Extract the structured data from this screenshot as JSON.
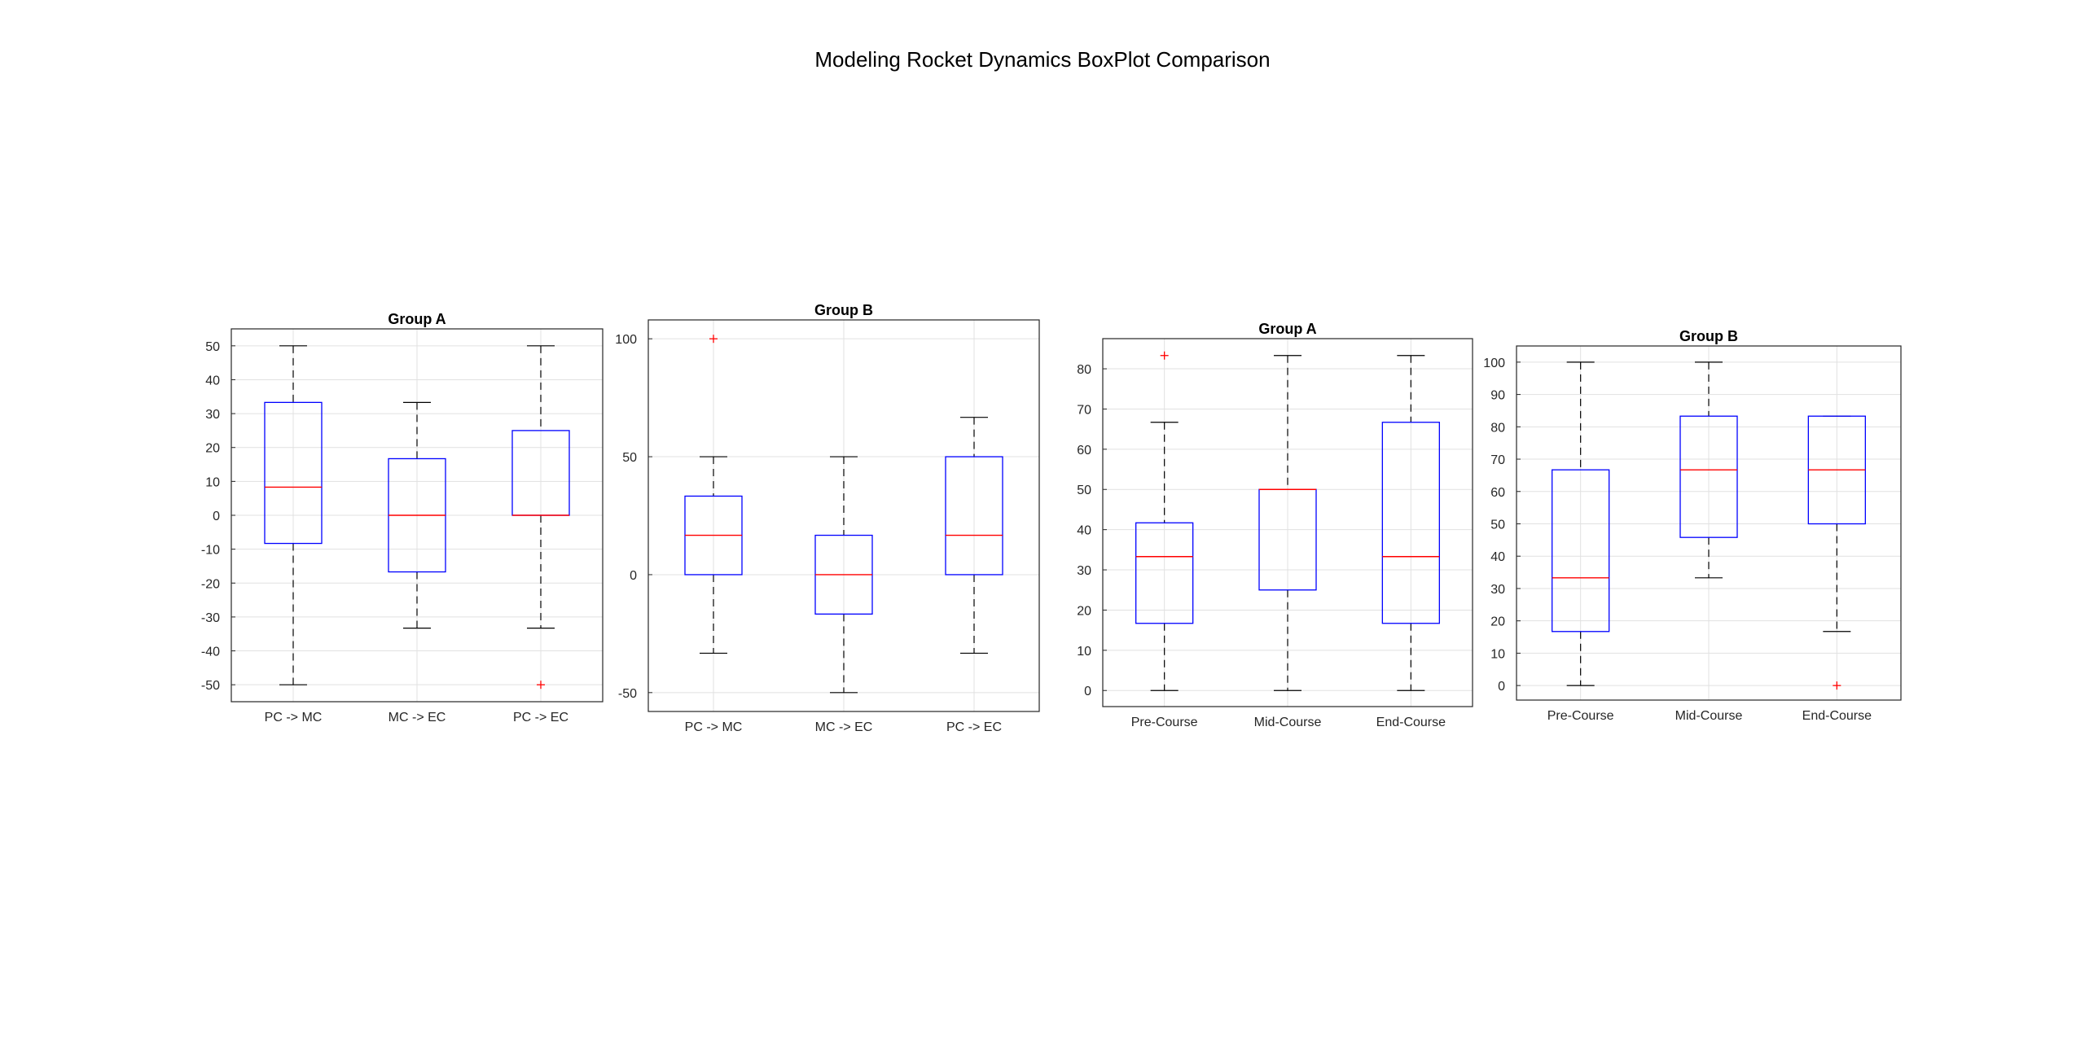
{
  "figure_title": "Modeling Rocket Dynamics BoxPlot Comparison",
  "colors": {
    "box": "#0000ff",
    "median": "#ff0000",
    "outlier": "#ff0000",
    "whisker": "#000000",
    "grid": "#e1e1e1",
    "axes": "#262626"
  },
  "chart_data": [
    {
      "type": "box",
      "title": "Group A",
      "categories": [
        "PC -> MC",
        "MC -> EC",
        "PC -> EC"
      ],
      "ylim": [
        -55,
        55
      ],
      "yticks": [
        -50,
        -40,
        -30,
        -20,
        -10,
        0,
        10,
        20,
        30,
        40,
        50
      ],
      "grid": true,
      "boxes": [
        {
          "whisker_low": -50,
          "q1": -8.3,
          "median": 8.3,
          "q3": 33.3,
          "whisker_high": 50,
          "outliers": []
        },
        {
          "whisker_low": -33.3,
          "q1": -16.7,
          "median": 0,
          "q3": 16.7,
          "whisker_high": 33.3,
          "outliers": []
        },
        {
          "whisker_low": -33.3,
          "q1": 0,
          "median": 0,
          "q3": 25,
          "whisker_high": 50,
          "outliers": [
            -50
          ]
        }
      ]
    },
    {
      "type": "box",
      "title": "Group B",
      "categories": [
        "PC -> MC",
        "MC -> EC",
        "PC -> EC"
      ],
      "ylim": [
        -58,
        108
      ],
      "yticks": [
        -50,
        0,
        50,
        100
      ],
      "grid": true,
      "boxes": [
        {
          "whisker_low": -33.3,
          "q1": 0,
          "median": 16.7,
          "q3": 33.3,
          "whisker_high": 50,
          "outliers": [
            100
          ]
        },
        {
          "whisker_low": -50,
          "q1": -16.7,
          "median": 0,
          "q3": 16.7,
          "whisker_high": 50,
          "outliers": []
        },
        {
          "whisker_low": -33.3,
          "q1": 0,
          "median": 16.7,
          "q3": 50,
          "whisker_high": 66.7,
          "outliers": []
        }
      ]
    },
    {
      "type": "box",
      "title": "Group A",
      "categories": [
        "Pre-Course",
        "Mid-Course",
        "End-Course"
      ],
      "ylim": [
        -4,
        87.5
      ],
      "yticks": [
        0,
        10,
        20,
        30,
        40,
        50,
        60,
        70,
        80
      ],
      "grid": true,
      "boxes": [
        {
          "whisker_low": 0,
          "q1": 16.7,
          "median": 33.3,
          "q3": 41.7,
          "whisker_high": 66.7,
          "outliers": [
            83.3
          ]
        },
        {
          "whisker_low": 0,
          "q1": 25,
          "median": 50,
          "q3": 50,
          "whisker_high": 83.3,
          "outliers": []
        },
        {
          "whisker_low": 0,
          "q1": 16.7,
          "median": 33.3,
          "q3": 66.7,
          "whisker_high": 83.3,
          "outliers": []
        }
      ]
    },
    {
      "type": "box",
      "title": "Group B",
      "categories": [
        "Pre-Course",
        "Mid-Course",
        "End-Course"
      ],
      "ylim": [
        -4.5,
        105
      ],
      "yticks": [
        0,
        10,
        20,
        30,
        40,
        50,
        60,
        70,
        80,
        90,
        100
      ],
      "grid": true,
      "boxes": [
        {
          "whisker_low": 0,
          "q1": 16.7,
          "median": 33.3,
          "q3": 66.7,
          "whisker_high": 100,
          "outliers": []
        },
        {
          "whisker_low": 33.3,
          "q1": 45.8,
          "median": 66.7,
          "q3": 83.3,
          "whisker_high": 100,
          "outliers": []
        },
        {
          "whisker_low": 16.7,
          "q1": 50,
          "median": 66.7,
          "q3": 83.3,
          "whisker_high": 83.3,
          "outliers": [
            0
          ]
        }
      ]
    }
  ]
}
